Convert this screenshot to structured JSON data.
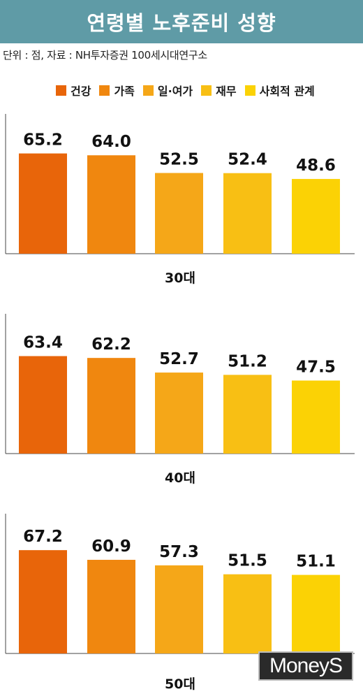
{
  "title": "연령별 노후준비 성향",
  "source": "단위 : 점, 자료 : NH투자증권 100세시대연구소",
  "watermark": "MoneyS",
  "colors": {
    "title_bg": "#5f9ba6",
    "series": [
      "#e8650a",
      "#f0870f",
      "#f5a718",
      "#f8bf14",
      "#fbd205"
    ]
  },
  "chart_data": {
    "type": "bar",
    "categories": [
      "30대",
      "40대",
      "50대"
    ],
    "series": [
      {
        "name": "건강",
        "values": [
          65.2,
          63.4,
          67.2
        ]
      },
      {
        "name": "가족",
        "values": [
          64.0,
          62.2,
          60.9
        ]
      },
      {
        "name": "일·여가",
        "values": [
          52.5,
          52.7,
          57.3
        ]
      },
      {
        "name": "재무",
        "values": [
          52.4,
          51.2,
          51.5
        ]
      },
      {
        "name": "사회적 관계",
        "values": [
          48.6,
          47.5,
          51.1
        ]
      }
    ],
    "value_labels": [
      [
        "65.2",
        "64.0",
        "52.5",
        "52.4",
        "48.6"
      ],
      [
        "63.4",
        "62.2",
        "52.7",
        "51.2",
        "47.5"
      ],
      [
        "67.2",
        "60.9",
        "57.3",
        "51.5",
        "51.1"
      ]
    ],
    "legend_position": "top"
  }
}
